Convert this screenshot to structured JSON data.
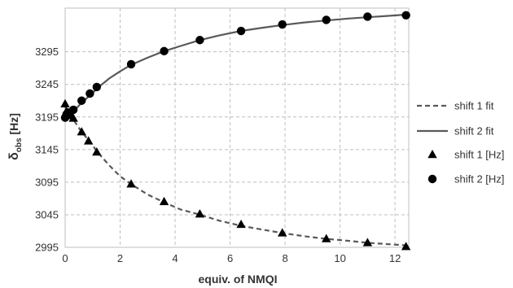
{
  "chart_data": {
    "type": "scatter",
    "xlabel": "equiv. of NMQI",
    "ylabel": {
      "main": "δ",
      "sub": "obs",
      "rest": " [Hz]"
    },
    "xlim": [
      0,
      12.5
    ],
    "ylim": [
      2995,
      3362
    ],
    "x_ticks": [
      0,
      2,
      4,
      6,
      8,
      10,
      12
    ],
    "y_ticks": [
      2995,
      3045,
      3095,
      3145,
      3195,
      3245,
      3295
    ],
    "grid": "dashed",
    "legend_position": "right",
    "colors": {
      "series": "#000000",
      "fit": "#595959",
      "grid": "#bfbfbf",
      "axis": "#bfbfbf"
    },
    "series": [
      {
        "name": "shift 1 fit",
        "kind": "line",
        "style": "dashed",
        "x": [
          0,
          0.3,
          0.6,
          0.9,
          1.2,
          1.6,
          2.0,
          2.4,
          3.0,
          3.6,
          4.2,
          4.9,
          5.6,
          6.4,
          7.2,
          7.9,
          8.7,
          9.5,
          10.3,
          11.0,
          11.7,
          12.4
        ],
        "values": [
          3210,
          3191,
          3172,
          3157,
          3140,
          3121,
          3104,
          3092,
          3076,
          3064,
          3053,
          3045,
          3036,
          3028,
          3022,
          3017,
          3012,
          3008,
          3005,
          3002,
          3000,
          2998
        ]
      },
      {
        "name": "shift 2 fit",
        "kind": "line",
        "style": "solid",
        "x": [
          0,
          0.2,
          0.4,
          0.6,
          0.9,
          1.2,
          1.6,
          2.0,
          2.4,
          3.0,
          3.6,
          4.2,
          4.9,
          5.6,
          6.4,
          7.2,
          7.9,
          8.7,
          9.5,
          10.3,
          11.0,
          11.7,
          12.4
        ],
        "values": [
          3194,
          3201,
          3208,
          3217,
          3228,
          3240,
          3254,
          3265,
          3275,
          3286,
          3296,
          3304,
          3313,
          3320,
          3327,
          3332,
          3336,
          3340,
          3343,
          3346,
          3348,
          3350,
          3352
        ]
      },
      {
        "name": "shift 1 [Hz]",
        "kind": "marker",
        "marker": "triangle",
        "x": [
          0.0,
          0.05,
          0.1,
          0.15,
          0.3,
          0.6,
          0.85,
          1.15,
          2.4,
          3.6,
          4.9,
          6.4,
          7.9,
          9.5,
          11.0,
          12.4
        ],
        "values": [
          3215,
          3203,
          3200,
          3197,
          3193,
          3172,
          3158,
          3141,
          3092,
          3065,
          3046,
          3030,
          3017,
          3008,
          3002,
          2996
        ]
      },
      {
        "name": "shift 2 [Hz]",
        "kind": "marker",
        "marker": "circle",
        "x": [
          0.0,
          0.05,
          0.1,
          0.15,
          0.3,
          0.6,
          0.9,
          1.15,
          2.4,
          3.6,
          4.9,
          6.4,
          7.9,
          9.5,
          11.0,
          12.4
        ],
        "values": [
          3194,
          3199,
          3202,
          3201,
          3206,
          3220,
          3231,
          3241,
          3276,
          3296,
          3313,
          3327,
          3337,
          3344,
          3349,
          3351
        ]
      }
    ]
  }
}
